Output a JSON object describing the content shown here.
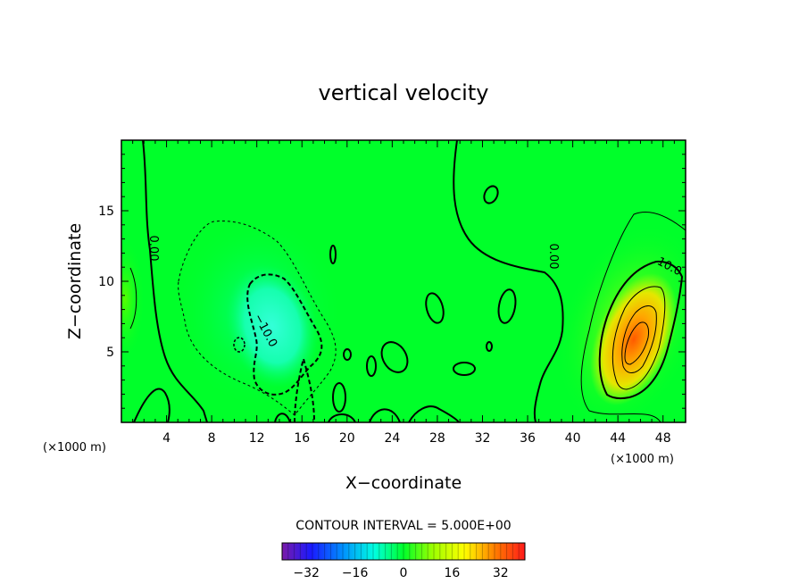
{
  "chart_data": {
    "type": "heatmap",
    "title": "vertical velocity",
    "xlabel": "X−coordinate",
    "ylabel": "Z−coordinate",
    "x_unit_label": "(×1000 m)",
    "x_unit_label_right": "(×1000 m)",
    "xlim": [
      0,
      50
    ],
    "ylim": [
      0,
      20
    ],
    "x_ticks": [
      4,
      8,
      12,
      16,
      20,
      24,
      28,
      32,
      36,
      40,
      44,
      48
    ],
    "y_ticks": [
      5,
      10,
      15
    ],
    "contour_interval_text": "CONTOUR INTERVAL = 5.000E+00",
    "contour_labels": [
      "0.00",
      "0.00",
      "−10.0",
      "10.0"
    ],
    "colorbar": {
      "range": [
        -40,
        40
      ],
      "ticks": [
        -32,
        -16,
        0,
        16,
        32
      ],
      "tick_labels": [
        "−32",
        "−16",
        "0",
        "16",
        "32"
      ]
    },
    "features": [
      {
        "kind": "updraft_max",
        "x": 45.2,
        "z": 5.3,
        "value": 30
      },
      {
        "kind": "downdraft_min",
        "x": 14.0,
        "z": 6.5,
        "value": -14
      }
    ],
    "colors": {
      "background_field": "#00ff2a",
      "updraft_core": "#ff6a00",
      "downdraft_core": "#33ffd2"
    }
  }
}
